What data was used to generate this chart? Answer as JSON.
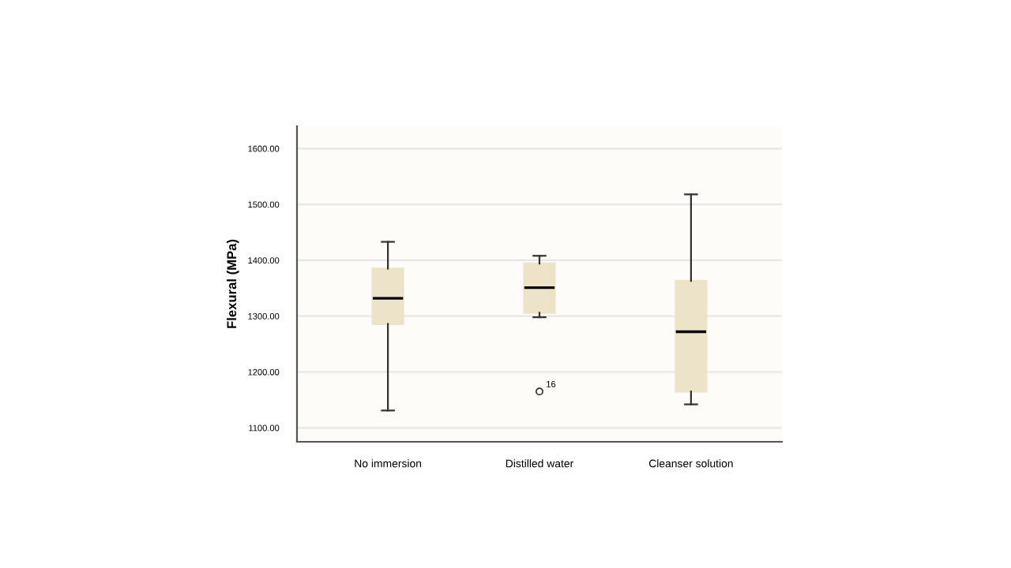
{
  "chart_data": {
    "type": "box",
    "ylabel": "Flexural (MPa)",
    "categories": [
      "No immersion",
      "Distilled water",
      "Cleanser solution"
    ],
    "boxes": [
      {
        "low": 1131,
        "q1": 1286,
        "median": 1332,
        "q3": 1385,
        "high": 1433
      },
      {
        "low": 1298,
        "q1": 1306,
        "median": 1351,
        "q3": 1394,
        "high": 1408,
        "outliers": [
          1165
        ]
      },
      {
        "low": 1142,
        "q1": 1165,
        "median": 1272,
        "q3": 1363,
        "high": 1518
      }
    ],
    "color": "#ede3c8",
    "ylim": [
      1075,
      1640
    ],
    "yticks": [
      {
        "value": 1100,
        "label": "1100.00"
      },
      {
        "value": 1200,
        "label": "1200.00"
      },
      {
        "value": 1300,
        "label": "1300.00"
      },
      {
        "value": 1400,
        "label": "1400.00"
      },
      {
        "value": 1500,
        "label": "1500.00"
      },
      {
        "value": 1600,
        "label": "1600.00"
      }
    ],
    "grid": "y",
    "annotations": [
      "16"
    ]
  }
}
